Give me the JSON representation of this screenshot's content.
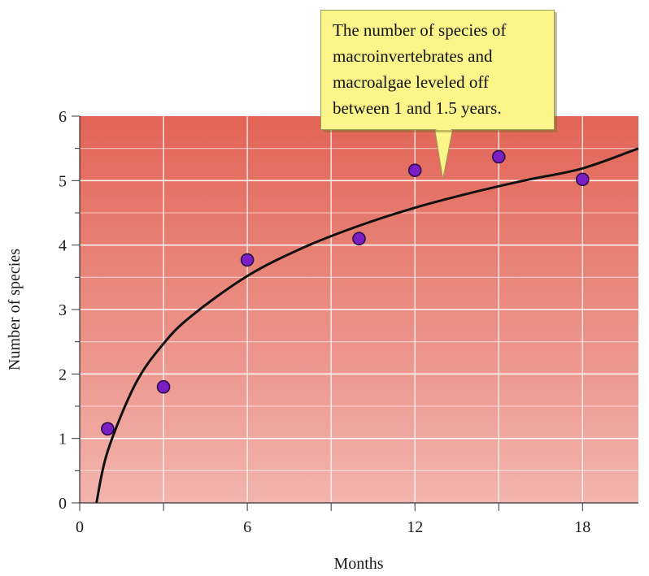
{
  "chart_data": {
    "type": "scatter",
    "xlabel": "Months",
    "ylabel": "Number of species",
    "xlim": [
      0,
      20
    ],
    "ylim": [
      0,
      6
    ],
    "x_ticks": [
      0,
      6,
      12,
      18
    ],
    "y_ticks": [
      0,
      1,
      2,
      3,
      4,
      5,
      6
    ],
    "grid": true,
    "points": [
      {
        "x": 1,
        "y": 1.15
      },
      {
        "x": 3,
        "y": 1.8
      },
      {
        "x": 6,
        "y": 3.77
      },
      {
        "x": 10,
        "y": 4.1
      },
      {
        "x": 12,
        "y": 5.16
      },
      {
        "x": 15,
        "y": 5.37
      },
      {
        "x": 18,
        "y": 5.02
      }
    ],
    "trend_curve": {
      "shape": "logarithmic",
      "x": [
        0.6,
        1,
        2,
        3,
        4,
        6,
        8,
        10,
        12,
        14,
        16,
        18,
        20
      ],
      "y": [
        0.0,
        0.8,
        1.85,
        2.47,
        2.9,
        3.52,
        3.96,
        4.3,
        4.58,
        4.81,
        5.01,
        5.19,
        5.5
      ]
    },
    "annotation": {
      "lines": [
        "The number of species of",
        "macroinvertebrates and",
        "macroalgae leveled off",
        "between 1 and 1.5 years."
      ],
      "points_to_x": 13
    },
    "colors": {
      "plot_top": "#e26456",
      "plot_bottom": "#f2b4ae",
      "grid": "#ffffff",
      "marker_fill": "#7b1fc4",
      "marker_edge": "#2a0a4a",
      "curve": "#111111",
      "callout_fill": "#fbf58a"
    }
  }
}
